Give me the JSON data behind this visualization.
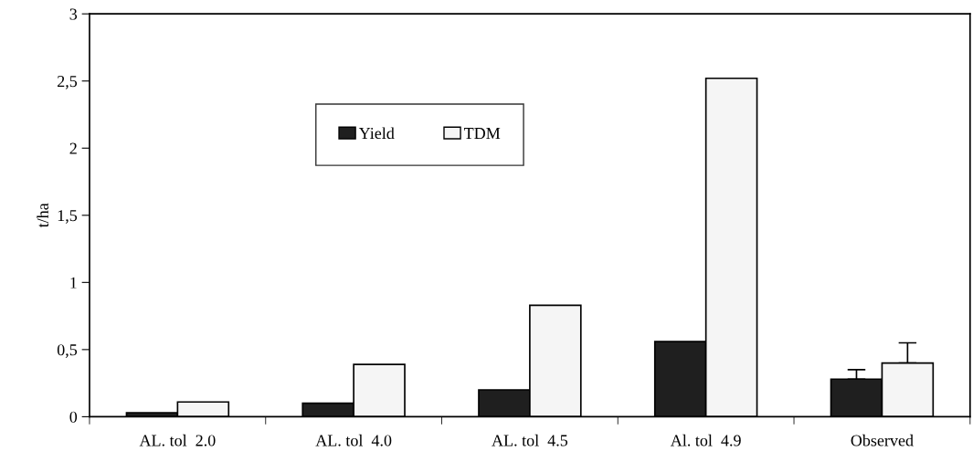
{
  "chart_data": {
    "type": "bar",
    "ylabel": "t/ha",
    "categories": [
      "AL. tol  2.0",
      "AL. tol  4.0",
      "AL. tol  4.5",
      "Al. tol  4.9",
      "Observed"
    ],
    "series": [
      {
        "name": "Yield",
        "color": "#1f1f1f",
        "values": [
          0.03,
          0.1,
          0.2,
          0.56,
          0.28
        ],
        "errors": [
          null,
          null,
          null,
          null,
          [
            0.28,
            0.35
          ]
        ]
      },
      {
        "name": "TDM",
        "color": "#f5f5f5",
        "values": [
          0.11,
          0.39,
          0.83,
          2.52,
          0.4
        ],
        "errors": [
          null,
          null,
          null,
          null,
          [
            0.4,
            0.55
          ]
        ]
      }
    ],
    "ylim": [
      0,
      3
    ],
    "yticks": [
      0,
      {
        "value": 0.5,
        "label": "0,5"
      },
      1,
      {
        "value": 1.5,
        "label": "1,5"
      },
      2,
      {
        "value": 2.5,
        "label": "2,5"
      },
      3
    ],
    "grid": false,
    "legend": "top"
  }
}
